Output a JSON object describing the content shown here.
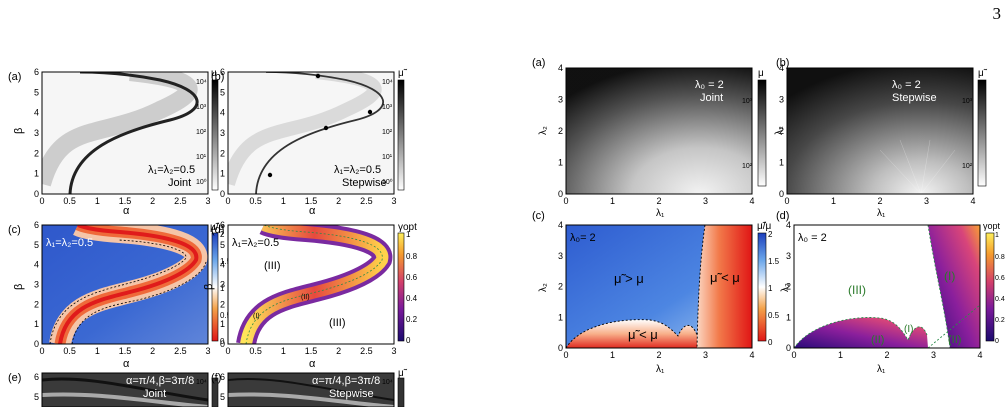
{
  "page_number": "3",
  "left_figure": {
    "panels": [
      {
        "label": "(a)",
        "annotation_1": "λ₁=λ₂=0.5",
        "annotation_2": "Joint",
        "xlabel": "α",
        "ylabel": "β",
        "colorbar_title": "μ",
        "colorbar_ticks": [
          "10⁴",
          "10³",
          "10²",
          "10¹",
          "10⁰"
        ]
      },
      {
        "label": "(b)",
        "annotation_1": "λ₁=λ₂=0.5",
        "annotation_2": "Stepwise",
        "xlabel": "α",
        "ylabel": "β",
        "colorbar_title": "μ̃",
        "colorbar_ticks": [
          "10⁴",
          "10³",
          "10²",
          "10¹",
          "10⁰"
        ]
      },
      {
        "label": "(c)",
        "annotation_1": "λ₁=λ₂=0.5",
        "xlabel": "α",
        "ylabel": "β",
        "colorbar_title": "μ̃/μ",
        "colorbar_ticks": [
          "2",
          "1.5",
          "1",
          "0.5",
          "0"
        ]
      },
      {
        "label": "(d)",
        "annotation_1": "λ₁=λ₂=0.5",
        "region_labels": [
          "(III)",
          "(III)",
          "(I)",
          "(II)"
        ],
        "xlabel": "α",
        "ylabel": "β",
        "colorbar_title": "γopt",
        "colorbar_ticks": [
          "1",
          "0.8",
          "0.6",
          "0.4",
          "0.2",
          "0"
        ]
      },
      {
        "label": "(e)",
        "annotation_1": "α=π/4,β=3π/8",
        "annotation_2": "Joint",
        "colorbar_ticks": [
          "10⁴"
        ]
      },
      {
        "label": "(f)",
        "annotation_1": "α=π/4,β=3π/8",
        "annotation_2": "Stepwise",
        "colorbar_title": "μ̃",
        "colorbar_ticks": [
          "10⁴"
        ]
      }
    ],
    "x_ticks": [
      "0",
      "0.5",
      "1",
      "1.5",
      "2",
      "2.5",
      "3"
    ],
    "y_ticks": [
      "0",
      "1",
      "2",
      "3",
      "4",
      "5",
      "6"
    ],
    "y_ticks_cropped": [
      "6",
      "5"
    ]
  },
  "right_figure": {
    "panels": [
      {
        "label": "(a)",
        "annotation_1": "λ₀ = 2",
        "annotation_2": "Joint",
        "xlabel": "λ₁",
        "ylabel": "λ₂",
        "colorbar_title": "μ",
        "colorbar_ticks": [
          "10³",
          "10²"
        ]
      },
      {
        "label": "(b)",
        "annotation_1": "λ₀ = 2",
        "annotation_2": "Stepwise",
        "xlabel": "λ₁",
        "ylabel": "λ₂",
        "colorbar_title": "μ̃",
        "colorbar_ticks": [
          "10³",
          "10²"
        ]
      },
      {
        "label": "(c)",
        "annotation_1": "λ₀= 2",
        "region_labels": [
          "μ̃ > μ",
          "μ̃ < μ",
          "μ̃ < μ"
        ],
        "xlabel": "λ₁",
        "ylabel": "λ₂",
        "colorbar_title": "μ̃/μ",
        "colorbar_ticks": [
          "2",
          "1.5",
          "1",
          "0.5",
          "0"
        ]
      },
      {
        "label": "(d)",
        "annotation_1": "λ₀ = 2",
        "region_labels": [
          "(III)",
          "(I)",
          "(II)",
          "(I)",
          "(II)"
        ],
        "xlabel": "λ₁",
        "ylabel": "λ₂",
        "colorbar_title": "γopt",
        "colorbar_ticks": [
          "1",
          "0.8",
          "0.6",
          "0.4",
          "0.2",
          "0"
        ]
      }
    ],
    "x_ticks": [
      "0",
      "1",
      "2",
      "3",
      "4"
    ],
    "y_ticks": [
      "0",
      "1",
      "2",
      "3",
      "4"
    ]
  }
}
